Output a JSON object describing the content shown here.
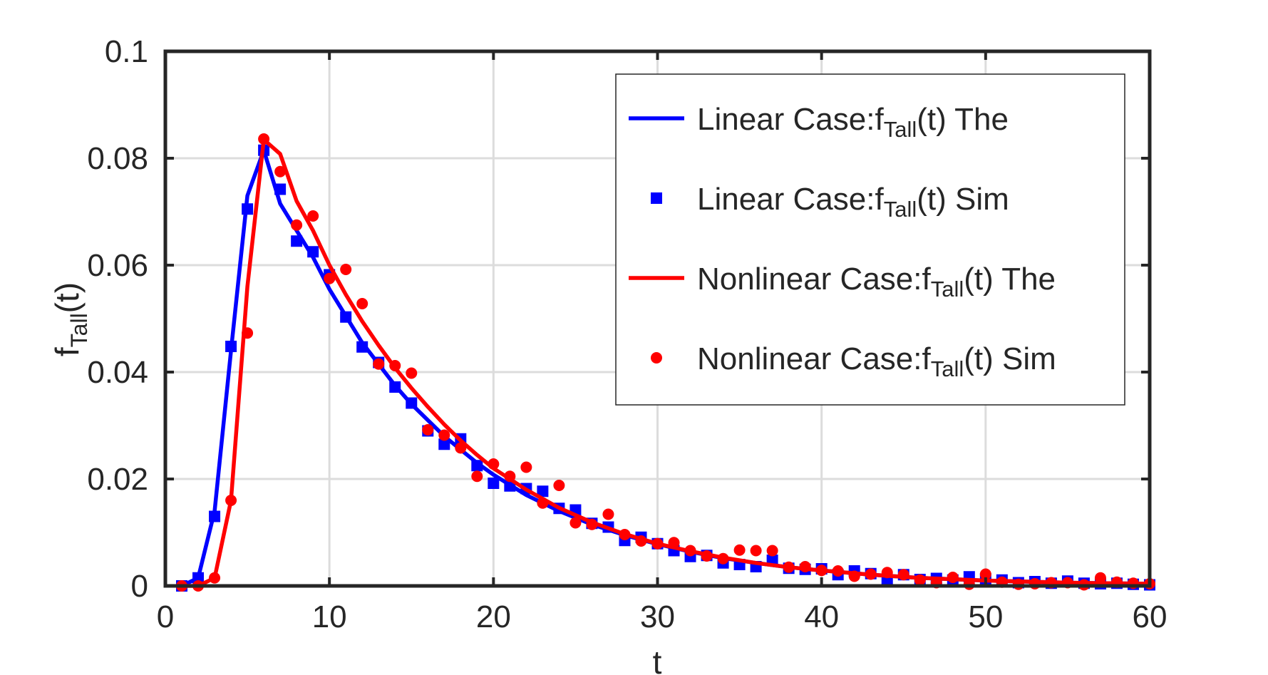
{
  "chart_data": {
    "type": "line",
    "title": "",
    "xlabel": "t",
    "ylabel": {
      "base": "f",
      "sub": "Tall",
      "suffix": "(t)"
    },
    "xlim": [
      0,
      60
    ],
    "ylim": [
      0,
      0.1
    ],
    "xticks": [
      0,
      10,
      20,
      30,
      40,
      50,
      60
    ],
    "yticks": [
      0,
      0.02,
      0.04,
      0.06,
      0.08,
      0.1
    ],
    "xtick_labels": [
      "0",
      "10",
      "20",
      "30",
      "40",
      "50",
      "60"
    ],
    "ytick_labels": [
      "0",
      "0.02",
      "0.04",
      "0.06",
      "0.08",
      "0.1"
    ],
    "grid": true,
    "legend_position": "top-right",
    "series": [
      {
        "name": {
          "prefix": "Linear Case:f",
          "sub": "Tall",
          "suffix": "(t) The"
        },
        "style": "line",
        "color": "#0000ff",
        "x": [
          1,
          2,
          3,
          4,
          5,
          6,
          7,
          8,
          9,
          10,
          11,
          12,
          13,
          14,
          15,
          16,
          17,
          18,
          19,
          20,
          22,
          24,
          26,
          28,
          30,
          32,
          34,
          36,
          38,
          40,
          43,
          46,
          50,
          55,
          60
        ],
        "y": [
          0,
          0.0015,
          0.014,
          0.044,
          0.073,
          0.0815,
          0.0715,
          0.0665,
          0.0615,
          0.0555,
          0.0505,
          0.0455,
          0.0415,
          0.0375,
          0.034,
          0.031,
          0.028,
          0.0255,
          0.023,
          0.0208,
          0.017,
          0.014,
          0.0115,
          0.0095,
          0.0078,
          0.0064,
          0.0052,
          0.0043,
          0.0035,
          0.0029,
          0.0021,
          0.0015,
          0.001,
          0.0006,
          0.0004
        ]
      },
      {
        "name": {
          "prefix": "Linear Case:f",
          "sub": "Tall",
          "suffix": "(t) Sim"
        },
        "style": "square",
        "color": "#0000ff",
        "x": [
          1,
          2,
          3,
          4,
          5,
          6,
          7,
          8,
          9,
          10,
          11,
          12,
          13,
          14,
          15,
          16,
          17,
          18,
          19,
          20,
          21,
          22,
          23,
          24,
          25,
          26,
          27,
          28,
          29,
          30,
          31,
          32,
          33,
          34,
          35,
          36,
          37,
          38,
          39,
          40,
          41,
          42,
          43,
          44,
          45,
          46,
          47,
          48,
          49,
          50,
          51,
          52,
          53,
          54,
          55,
          56,
          57,
          58,
          59,
          60
        ],
        "y": [
          0,
          0.0015,
          0.013,
          0.0448,
          0.0705,
          0.0815,
          0.0742,
          0.0645,
          0.0625,
          0.0582,
          0.0503,
          0.0447,
          0.0418,
          0.0372,
          0.0342,
          0.029,
          0.0265,
          0.0275,
          0.0225,
          0.0192,
          0.0187,
          0.0182,
          0.0177,
          0.0145,
          0.0142,
          0.0117,
          0.011,
          0.0085,
          0.0091,
          0.0079,
          0.0066,
          0.0055,
          0.0057,
          0.0043,
          0.004,
          0.0036,
          0.0048,
          0.0033,
          0.0031,
          0.0032,
          0.0021,
          0.0028,
          0.0023,
          0.0011,
          0.0021,
          0.0012,
          0.0014,
          0.0011,
          0.0017,
          0.0013,
          0.0011,
          0.0006,
          0.0008,
          0.0005,
          0.0009,
          0.0005,
          0.0004,
          0.0005,
          0.0003,
          0.0002
        ]
      },
      {
        "name": {
          "prefix": "Nonlinear Case:f",
          "sub": "Tall",
          "suffix": "(t) The"
        },
        "style": "line",
        "color": "#ff0000",
        "x": [
          1,
          2,
          3,
          4,
          5,
          6,
          7,
          8,
          9,
          10,
          11,
          12,
          13,
          14,
          15,
          16,
          17,
          18,
          19,
          20,
          22,
          24,
          26,
          28,
          30,
          32,
          34,
          36,
          38,
          40,
          43,
          46,
          50,
          55,
          60
        ],
        "y": [
          0,
          0,
          0.0015,
          0.016,
          0.056,
          0.0835,
          0.0808,
          0.072,
          0.0665,
          0.06,
          0.0545,
          0.0495,
          0.045,
          0.0408,
          0.037,
          0.0335,
          0.0302,
          0.0272,
          0.0245,
          0.022,
          0.018,
          0.0146,
          0.0119,
          0.0097,
          0.0079,
          0.0065,
          0.0053,
          0.0043,
          0.0035,
          0.0029,
          0.0021,
          0.0015,
          0.001,
          0.0006,
          0.0004
        ]
      },
      {
        "name": {
          "prefix": "Nonlinear Case:f",
          "sub": "Tall",
          "suffix": "(t) Sim"
        },
        "style": "circle",
        "color": "#ff0000",
        "x": [
          1,
          2,
          3,
          4,
          5,
          6,
          7,
          8,
          9,
          10,
          11,
          12,
          13,
          14,
          15,
          16,
          17,
          18,
          19,
          20,
          21,
          22,
          23,
          24,
          25,
          26,
          27,
          28,
          29,
          30,
          31,
          32,
          33,
          34,
          35,
          36,
          37,
          38,
          39,
          40,
          41,
          42,
          43,
          44,
          45,
          46,
          47,
          48,
          49,
          50,
          51,
          52,
          53,
          54,
          55,
          56,
          57,
          58,
          59,
          60
        ],
        "y": [
          0,
          0,
          0.0015,
          0.016,
          0.0473,
          0.0836,
          0.0775,
          0.0675,
          0.0692,
          0.0575,
          0.0592,
          0.0528,
          0.0415,
          0.0412,
          0.0398,
          0.0292,
          0.0282,
          0.0258,
          0.0205,
          0.0228,
          0.0205,
          0.0222,
          0.0155,
          0.0188,
          0.0118,
          0.0115,
          0.0134,
          0.0096,
          0.0084,
          0.0079,
          0.0081,
          0.0066,
          0.0056,
          0.0051,
          0.0067,
          0.0066,
          0.0066,
          0.0035,
          0.0036,
          0.0029,
          0.0028,
          0.0018,
          0.0022,
          0.0025,
          0.0021,
          0.0011,
          0.0006,
          0.0016,
          0.0003,
          0.0022,
          0.0007,
          0.0003,
          0.0004,
          0.0006,
          0.0006,
          0.0002,
          0.0015,
          0.0007,
          0.0005,
          0.0004
        ]
      }
    ]
  }
}
